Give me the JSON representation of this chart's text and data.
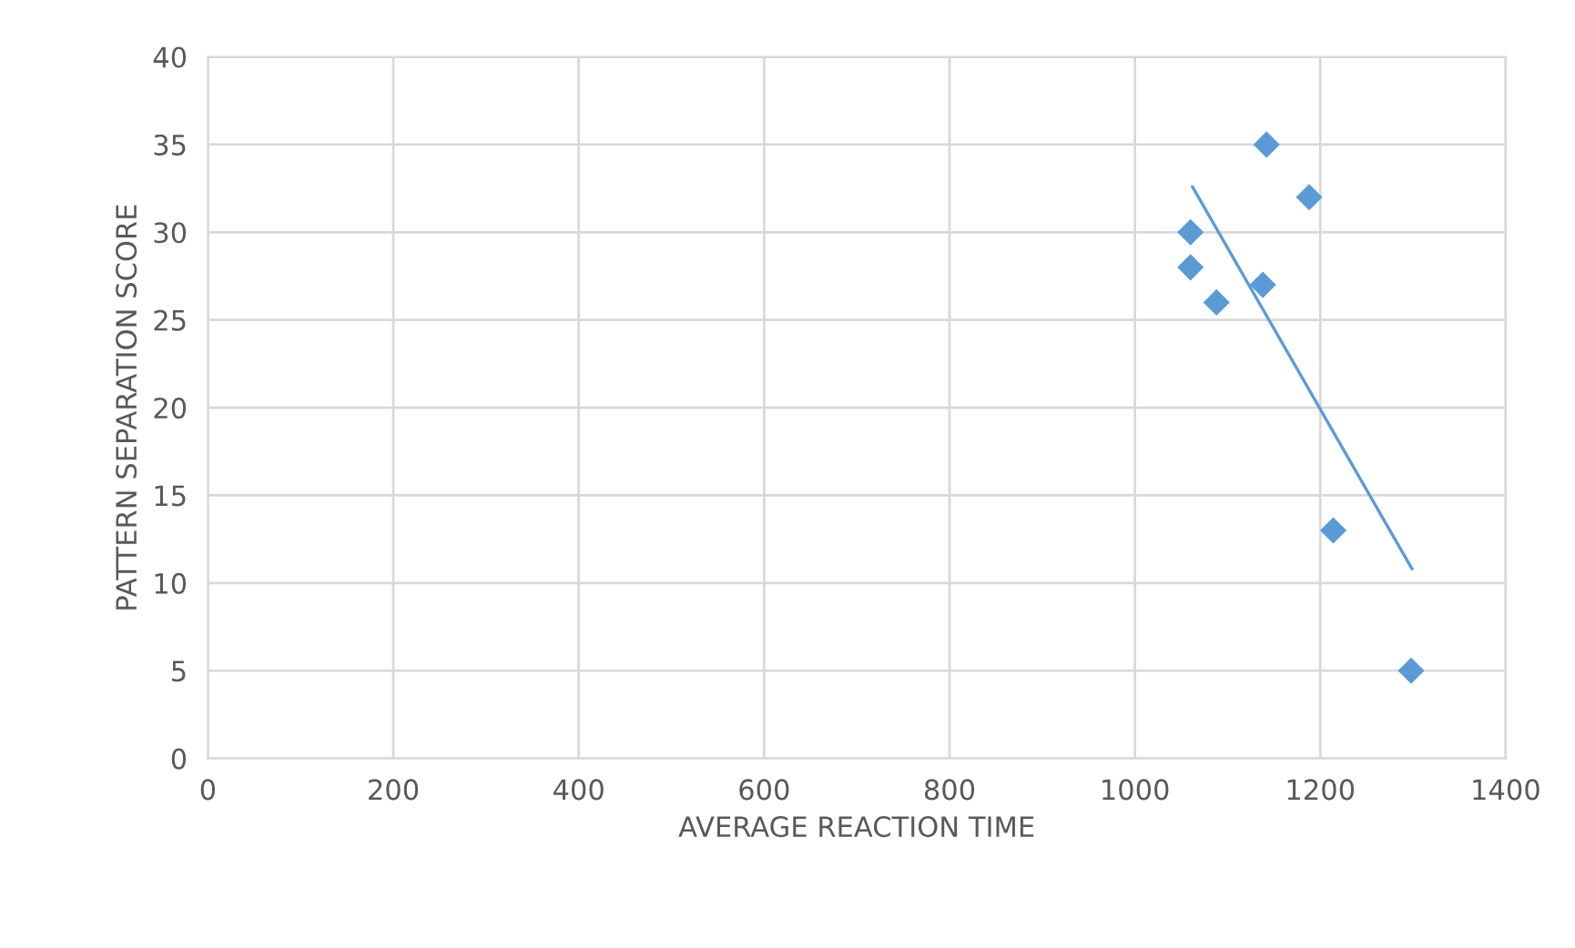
{
  "chart_data": {
    "type": "scatter",
    "xlabel": "AVERAGE REACTION TIME",
    "ylabel": "PATTERN SEPARATION SCORE",
    "series": [
      {
        "type": "scatter",
        "color": "#5b9bd5",
        "marker": "diamond",
        "x": [
          1060,
          1060,
          1088,
          1138,
          1142,
          1188,
          1214,
          1298
        ],
        "values": [
          30,
          28,
          26,
          27,
          35,
          32,
          13,
          5
        ]
      },
      {
        "type": "line",
        "color": "#5b9bd5",
        "marker": "none",
        "line_style": "solid",
        "x": [
          1062,
          1299
        ],
        "values": [
          32.6,
          10.8
        ]
      }
    ],
    "xlim": [
      0,
      1400
    ],
    "xticks": [
      0,
      200,
      400,
      600,
      800,
      1000,
      1200,
      1400
    ],
    "ylim": [
      0,
      40
    ],
    "yticks": [
      0,
      5,
      10,
      15,
      20,
      25,
      30,
      35,
      40
    ],
    "grid": true,
    "legend": false
  }
}
